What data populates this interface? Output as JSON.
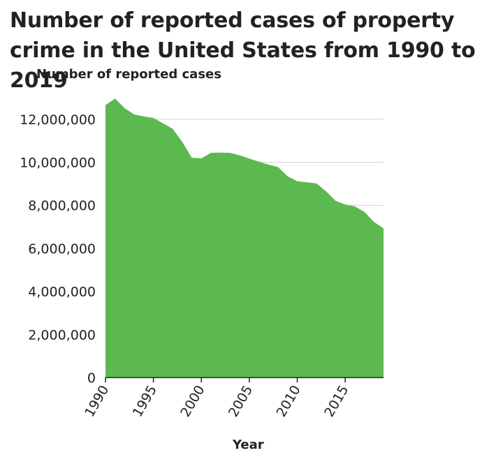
{
  "chart_data": {
    "type": "area",
    "title": "Number of reported cases of property crime in the United States from 1990 to 2019",
    "xlabel": "Year",
    "ylabel": "Number of reported cases",
    "xlim": [
      1990,
      2019
    ],
    "ylim": [
      0,
      13000000
    ],
    "x_ticks": [
      1990,
      1995,
      2000,
      2005,
      2010,
      2015
    ],
    "x_tick_labels": [
      "1990",
      "1995",
      "2000",
      "2005",
      "2010",
      "2015"
    ],
    "y_ticks": [
      0,
      2000000,
      4000000,
      6000000,
      8000000,
      10000000,
      12000000
    ],
    "y_tick_labels": [
      "0",
      "2,000,000",
      "4,000,000",
      "6,000,000",
      "8,000,000",
      "10,000,000",
      "12,000,000"
    ],
    "grid": "horizontal",
    "color": "#5bb94f",
    "x": [
      1990,
      1991,
      1992,
      1993,
      1994,
      1995,
      1996,
      1997,
      1998,
      1999,
      2000,
      2001,
      2002,
      2003,
      2004,
      2005,
      2006,
      2007,
      2008,
      2009,
      2010,
      2011,
      2012,
      2013,
      2014,
      2015,
      2016,
      2017,
      2018,
      2019
    ],
    "values": [
      12660000,
      12960000,
      12510000,
      12220000,
      12130000,
      12060000,
      11810000,
      11560000,
      10950000,
      10210000,
      10180000,
      10440000,
      10450000,
      10440000,
      10320000,
      10170000,
      10030000,
      9890000,
      9780000,
      9350000,
      9120000,
      9070000,
      9020000,
      8650000,
      8210000,
      8040000,
      7950000,
      7700000,
      7230000,
      6930000
    ]
  }
}
